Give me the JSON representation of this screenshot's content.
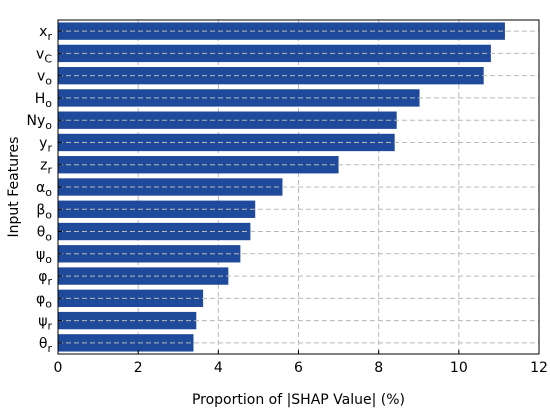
{
  "chart_data": {
    "type": "bar",
    "orientation": "horizontal",
    "title": "",
    "xlabel": "Proportion of |SHAP Value| (%)",
    "ylabel": "Input Features",
    "xlim": [
      0,
      12
    ],
    "xticks": [
      0,
      2,
      4,
      6,
      8,
      10,
      12
    ],
    "grid": true,
    "bar_color": "#1f4a9c",
    "categories": [
      {
        "base": "x",
        "sub": "r"
      },
      {
        "base": "v",
        "sub": "C"
      },
      {
        "base": "v",
        "sub": "o"
      },
      {
        "base": "H",
        "sub": "o"
      },
      {
        "base": "Ny",
        "sub": "o"
      },
      {
        "base": "y",
        "sub": "r"
      },
      {
        "base": "z",
        "sub": "r"
      },
      {
        "base": "α",
        "sub": "o"
      },
      {
        "base": "β",
        "sub": "o"
      },
      {
        "base": "θ",
        "sub": "o"
      },
      {
        "base": "ψ",
        "sub": "o"
      },
      {
        "base": "φ",
        "sub": "r"
      },
      {
        "base": "φ",
        "sub": "o"
      },
      {
        "base": "ψ",
        "sub": "r"
      },
      {
        "base": "θ",
        "sub": "r"
      }
    ],
    "values": [
      11.15,
      10.8,
      10.62,
      9.02,
      8.45,
      8.4,
      7.0,
      5.6,
      4.92,
      4.8,
      4.55,
      4.25,
      3.62,
      3.45,
      3.38
    ]
  }
}
